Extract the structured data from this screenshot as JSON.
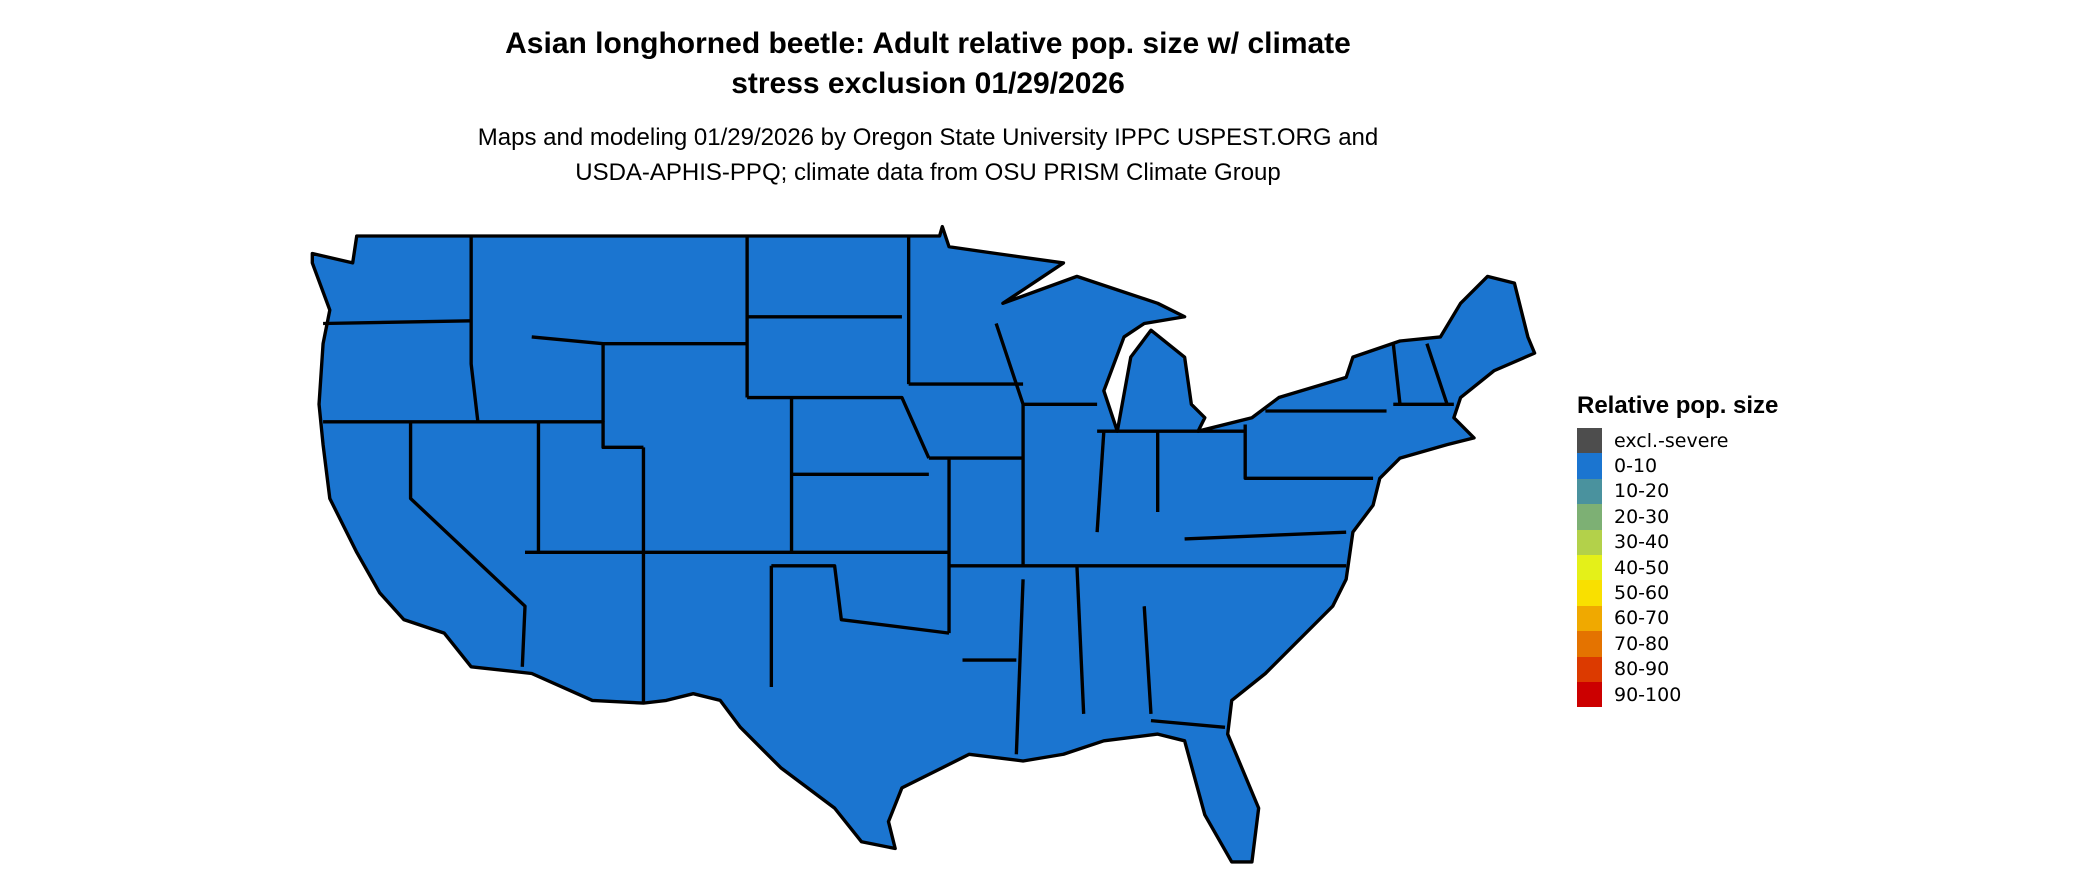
{
  "title": "Asian longhorned beetle: Adult relative pop. size w/ climate stress exclusion 01/29/2026",
  "title_line1": "Asian longhorned beetle: Adult relative pop. size w/ climate",
  "title_line2": "stress exclusion 01/29/2026",
  "subtitle_line1": "Maps and modeling 01/29/2026 by Oregon State University IPPC USPEST.ORG and",
  "subtitle_line2": "USDA-APHIS-PPQ; climate data from OSU PRISM Climate Group",
  "map": {
    "region": "Contiguous United States",
    "fill_category": "0-10",
    "fill_color": "#1b75d0",
    "border_color": "#000000"
  },
  "legend": {
    "title": "Relative pop. size",
    "items": [
      {
        "label": "excl.-severe",
        "color": "#4d4d4d"
      },
      {
        "label": "0-10",
        "color": "#1b75d0"
      },
      {
        "label": "10-20",
        "color": "#4a929e"
      },
      {
        "label": "20-30",
        "color": "#7db074"
      },
      {
        "label": "30-40",
        "color": "#b3d14a"
      },
      {
        "label": "40-50",
        "color": "#e4f019"
      },
      {
        "label": "50-60",
        "color": "#f9e000"
      },
      {
        "label": "60-70",
        "color": "#f0a900"
      },
      {
        "label": "70-80",
        "color": "#e47300"
      },
      {
        "label": "80-90",
        "color": "#dc3a00"
      },
      {
        "label": "90-100",
        "color": "#cc0000"
      }
    ]
  }
}
